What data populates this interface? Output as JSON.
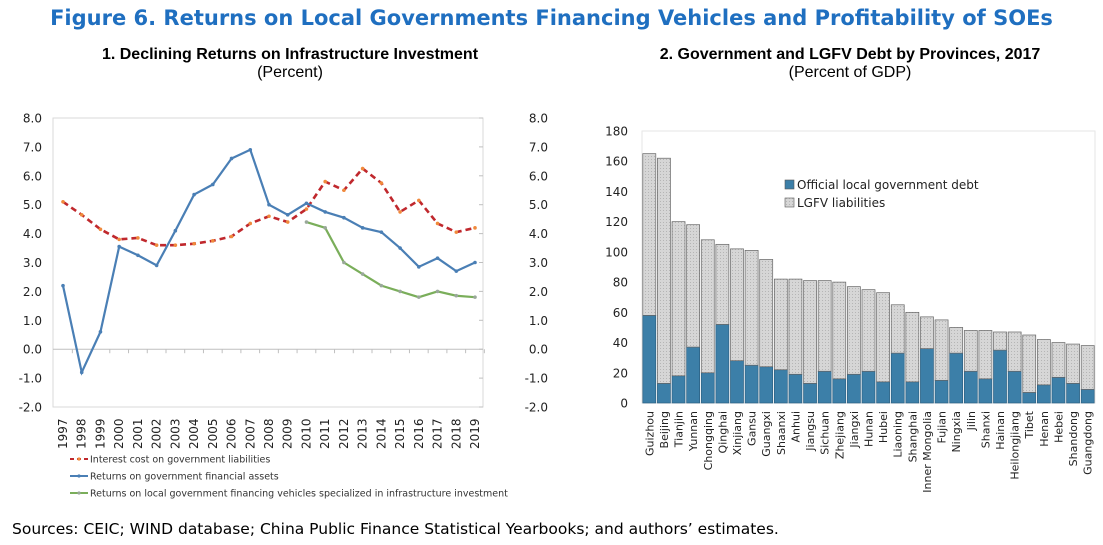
{
  "title": "Figure 6. Returns on Local Governments Financing Vehicles and Profitability of SOEs",
  "sources": "Sources: CEIC; WIND database; China Public Finance Statistical Yearbooks; and authors’ estimates.",
  "chart_data": [
    {
      "type": "line",
      "title": "1. Declining Returns on Infrastructure Investment",
      "subtitle": "(Percent)",
      "ylim": [
        -2,
        8
      ],
      "yticks": [
        "8.0",
        "7.0",
        "6.0",
        "5.0",
        "4.0",
        "3.0",
        "2.0",
        "1.0",
        "0.0",
        "-1.0",
        "-2.0"
      ],
      "x": [
        "1997",
        "1998",
        "1999",
        "2000",
        "2001",
        "2002",
        "2003",
        "2004",
        "2005",
        "2006",
        "2007",
        "2008",
        "2009",
        "2010",
        "2011",
        "2012",
        "2013",
        "2014",
        "2015",
        "2016",
        "2017",
        "2018",
        "2019"
      ],
      "series": [
        {
          "name": "Interest cost on government liabilities",
          "color": "#c0282d",
          "marker": "#f08a3c",
          "dashed": true,
          "values": [
            5.1,
            4.65,
            4.15,
            3.8,
            3.85,
            3.6,
            3.6,
            3.65,
            3.75,
            3.9,
            4.35,
            4.6,
            4.4,
            4.85,
            5.8,
            5.5,
            6.25,
            5.75,
            4.75,
            5.15,
            4.35,
            4.05,
            4.2
          ]
        },
        {
          "name": "Returns on government financial assets",
          "color": "#4a7fb5",
          "marker": "#4a7fb5",
          "dashed": false,
          "values": [
            2.2,
            -0.8,
            0.6,
            3.55,
            3.25,
            2.9,
            4.1,
            5.35,
            5.7,
            6.6,
            6.9,
            5.0,
            4.65,
            5.05,
            4.75,
            4.55,
            4.2,
            4.05,
            3.5,
            2.85,
            3.15,
            2.7,
            3.0
          ]
        },
        {
          "name": "Returns on local government financing vehicles specialized in infrastructure investment",
          "color": "#7aae5a",
          "marker": "#9aa89a",
          "dashed": false,
          "values": [
            null,
            null,
            null,
            null,
            null,
            null,
            null,
            null,
            null,
            null,
            null,
            null,
            null,
            4.4,
            4.2,
            3.0,
            2.6,
            2.2,
            2.0,
            1.8,
            2.0,
            1.85,
            1.8
          ]
        }
      ],
      "legend": "bottom-left",
      "grid": false
    },
    {
      "type": "bar",
      "stacked": true,
      "title": "2. Government and LGFV Debt by Provinces, 2017",
      "subtitle": "(Percent of GDP)",
      "ylim": [
        0,
        180
      ],
      "yticks": [
        "180",
        "160",
        "140",
        "120",
        "100",
        "80",
        "60",
        "40",
        "20",
        "0"
      ],
      "categories": [
        "Guizhou",
        "Beijing",
        "Tianjin",
        "Yunnan",
        "Chongqing",
        "Qinghai",
        "Xinjiang",
        "Gansu",
        "Guangxi",
        "Shaanxi",
        "Anhui",
        "Jiangsu",
        "Sichuan",
        "Zhejiang",
        "Jiangxi",
        "Hunan",
        "Hubei",
        "Liaoning",
        "Shanghai",
        "Inner Mongolia",
        "Fujian",
        "Ningxia",
        "Jilin",
        "Shanxi",
        "Hainan",
        "Heilongjiang",
        "Tibet",
        "Henan",
        "Hebei",
        "Shandong",
        "Guangdong"
      ],
      "series": [
        {
          "name": "Official local government debt",
          "color": "#3c7fa8",
          "values": [
            58,
            13,
            18,
            37,
            20,
            52,
            28,
            25,
            24,
            22,
            19,
            13,
            21,
            16,
            19,
            21,
            14,
            33,
            14,
            36,
            15,
            33,
            21,
            16,
            35,
            21,
            7,
            12,
            17,
            13,
            9
          ]
        },
        {
          "name": "LGFV liabilities",
          "color": "#d3d3d3",
          "values": [
            107,
            149,
            102,
            81,
            88,
            53,
            74,
            76,
            71,
            60,
            63,
            68,
            60,
            64,
            58,
            54,
            59,
            32,
            46,
            21,
            40,
            17,
            27,
            32,
            12,
            26,
            38,
            30,
            23,
            26,
            29
          ]
        }
      ],
      "legend": "top-center",
      "grid": false
    }
  ]
}
